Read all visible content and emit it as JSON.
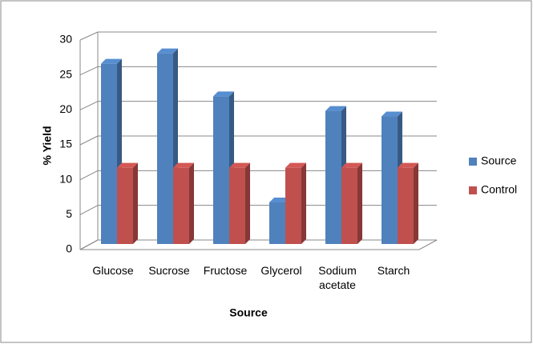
{
  "chart_data": {
    "type": "bar3d",
    "x_label": "Source",
    "y_label": "% Yield",
    "categories": [
      "Glucose",
      "Sucrose",
      "Fructose",
      "Glycerol",
      "Sodium acetate",
      "Starch"
    ],
    "series": [
      {
        "name": "Source",
        "color": "#4f81bd",
        "values": [
          26,
          27.5,
          21.3,
          6,
          19.2,
          18.4
        ]
      },
      {
        "name": "Control",
        "color": "#c0504d",
        "values": [
          11,
          11,
          11,
          11,
          11,
          11
        ]
      }
    ],
    "ylim": [
      0,
      30
    ],
    "yticks": [
      0,
      5,
      10,
      15,
      20,
      25,
      30
    ],
    "grid": true,
    "legend": "right"
  }
}
